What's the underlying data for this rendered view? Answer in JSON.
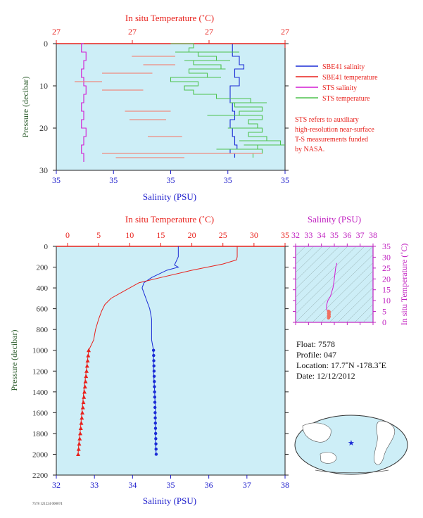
{
  "top_panel": {
    "title": "In situ Temperature (˚C)",
    "temp_ticks": [
      "27",
      "27",
      "27",
      "27"
    ],
    "salinity_ticks": [
      "35",
      "35",
      "35",
      "35",
      "35"
    ],
    "xlabel": "Salinity (PSU)",
    "ylabel": "Pressure (decibar)",
    "pressure_ticks": [
      "0",
      "10",
      "20",
      "30"
    ],
    "legend": [
      {
        "label": "SBE41 salinity",
        "color": "#1a2bd6"
      },
      {
        "label": "SBE41 temperature",
        "color": "#e8211c"
      },
      {
        "label": "STS salinity",
        "color": "#d21bd2"
      },
      {
        "label": "STS temperature",
        "color": "#4dc24d"
      }
    ],
    "note_lines": [
      "STS refers to auxiliary",
      "high-resolution near-surface",
      "T-S measurements funded",
      "by NASA."
    ]
  },
  "main_panel": {
    "title": "In situ Temperature (˚C)",
    "temp_ticks": [
      "0",
      "5",
      "10",
      "15",
      "20",
      "25",
      "30",
      "35"
    ],
    "salinity_ticks": [
      "32",
      "33",
      "34",
      "35",
      "36",
      "37",
      "38"
    ],
    "xlabel": "Salinity (PSU)",
    "ylabel": "Pressure (decibar)",
    "pressure_ticks": [
      "0",
      "200",
      "400",
      "600",
      "800",
      "1000",
      "1200",
      "1400",
      "1600",
      "1800",
      "2000",
      "2200"
    ]
  },
  "ts_panel": {
    "title": "Salinity (PSU)",
    "salinity_ticks": [
      "32",
      "33",
      "34",
      "35",
      "36",
      "37",
      "38"
    ],
    "ylabel": "In situ Temperature (˚C)",
    "temp_ticks": [
      "0",
      "5",
      "10",
      "15",
      "20",
      "25",
      "30",
      "35"
    ]
  },
  "float_info": {
    "float": "Float:  7578",
    "profile": "Profile:  047",
    "location": "Location:  17.7˚N  -178.3˚E",
    "date": "Date:  12/12/2012"
  },
  "footer_code": "7578 121224 000074",
  "colors": {
    "plot_bg": "#cdeef7",
    "temperature": "#e8211c",
    "salinity": "#1a2bd6",
    "sts_salinity": "#d21bd2",
    "sts_temperature": "#4dc24d",
    "ts_axis": "#c020c0",
    "pressure_axis": "#2e5e2e"
  },
  "chart_data": [
    {
      "type": "line",
      "panel": "upper",
      "xlabel": "Salinity (PSU)",
      "x2label": "In situ Temperature (˚C)",
      "ylabel": "Pressure (decibar)",
      "ylim": [
        30,
        0
      ],
      "series": [
        {
          "name": "SBE41 salinity",
          "pressure": [
            0,
            3,
            5,
            6,
            8,
            10,
            14,
            16,
            18,
            20,
            22,
            24,
            25,
            26,
            27
          ],
          "norm": [
            0.78,
            0.77,
            0.8,
            0.82,
            0.78,
            0.8,
            0.76,
            0.77,
            0.78,
            0.76,
            0.77,
            0.78,
            0.79,
            0.76,
            0.78
          ]
        },
        {
          "name": "SBE41 temperature",
          "pressure": [
            0,
            0.5,
            1
          ],
          "norm": [
            0.0,
            1.0,
            1.0
          ]
        },
        {
          "name": "STS salinity",
          "pressure": [
            0,
            2,
            4,
            6,
            8,
            10,
            12,
            14,
            16,
            18,
            20,
            22,
            24,
            26,
            28
          ],
          "norm": [
            0.12,
            0.11,
            0.13,
            0.12,
            0.11,
            0.12,
            0.13,
            0.12,
            0.11,
            0.12,
            0.11,
            0.13,
            0.12,
            0.11,
            0.12
          ]
        },
        {
          "name": "STS temperature",
          "pressure": [
            0,
            1,
            2,
            3,
            4,
            5,
            6,
            7,
            8,
            9,
            10,
            11,
            12,
            13,
            14,
            15,
            16,
            17,
            18,
            19,
            20,
            21,
            22,
            23,
            24,
            25,
            26,
            27
          ],
          "norm": [
            0.5,
            0.6,
            0.58,
            0.62,
            0.7,
            0.6,
            0.72,
            0.58,
            0.66,
            0.5,
            0.62,
            0.56,
            0.6,
            0.7,
            0.85,
            0.78,
            0.9,
            0.8,
            0.9,
            0.84,
            0.88,
            0.9,
            0.84,
            0.92,
            0.98,
            0.88,
            0.9,
            0.86
          ]
        }
      ]
    },
    {
      "type": "line",
      "panel": "profile",
      "xlabel": "Salinity (PSU)",
      "x2label": "In situ Temperature (˚C)",
      "ylabel": "Pressure (decibar)",
      "xlim_salinity": [
        32,
        38
      ],
      "xlim_temperature": [
        0,
        35
      ],
      "ylim": [
        2200,
        0
      ],
      "series": [
        {
          "name": "Salinity",
          "x": [
            35.2,
            35.2,
            35.1,
            35.2,
            34.9,
            34.5,
            34.3,
            34.25,
            34.3,
            34.35,
            34.4,
            34.45,
            34.5,
            34.5,
            34.5,
            34.55,
            34.55,
            34.58,
            34.6,
            34.6,
            34.6,
            34.62
          ],
          "y": [
            0,
            100,
            180,
            200,
            230,
            300,
            350,
            400,
            450,
            500,
            550,
            600,
            700,
            800,
            900,
            1000,
            1200,
            1400,
            1600,
            1800,
            1900,
            2000
          ]
        },
        {
          "name": "Temperature",
          "x": [
            27.3,
            27.3,
            27.2,
            25,
            20,
            15,
            11.5,
            10,
            8.5,
            7,
            6,
            5.5,
            5,
            4.5,
            4.2,
            3.4,
            3,
            2.6,
            2.3,
            2,
            1.8,
            1.7
          ],
          "y": [
            0,
            100,
            130,
            170,
            230,
            300,
            350,
            400,
            450,
            500,
            560,
            620,
            700,
            800,
            900,
            1000,
            1200,
            1400,
            1600,
            1800,
            1900,
            2000
          ]
        }
      ]
    },
    {
      "type": "scatter",
      "panel": "t-s",
      "xlabel": "Salinity (PSU)",
      "ylabel": "In situ Temperature (˚C)",
      "xlim": [
        32,
        38
      ],
      "ylim": [
        0,
        35
      ],
      "series": [
        {
          "name": "T-S",
          "x": [
            35.2,
            35.1,
            35.0,
            34.9,
            34.7,
            34.5,
            34.4,
            34.4,
            34.5,
            34.6,
            34.6
          ],
          "y": [
            27.3,
            25,
            20,
            16,
            12,
            10,
            8,
            6,
            5,
            4,
            2
          ]
        }
      ]
    }
  ]
}
